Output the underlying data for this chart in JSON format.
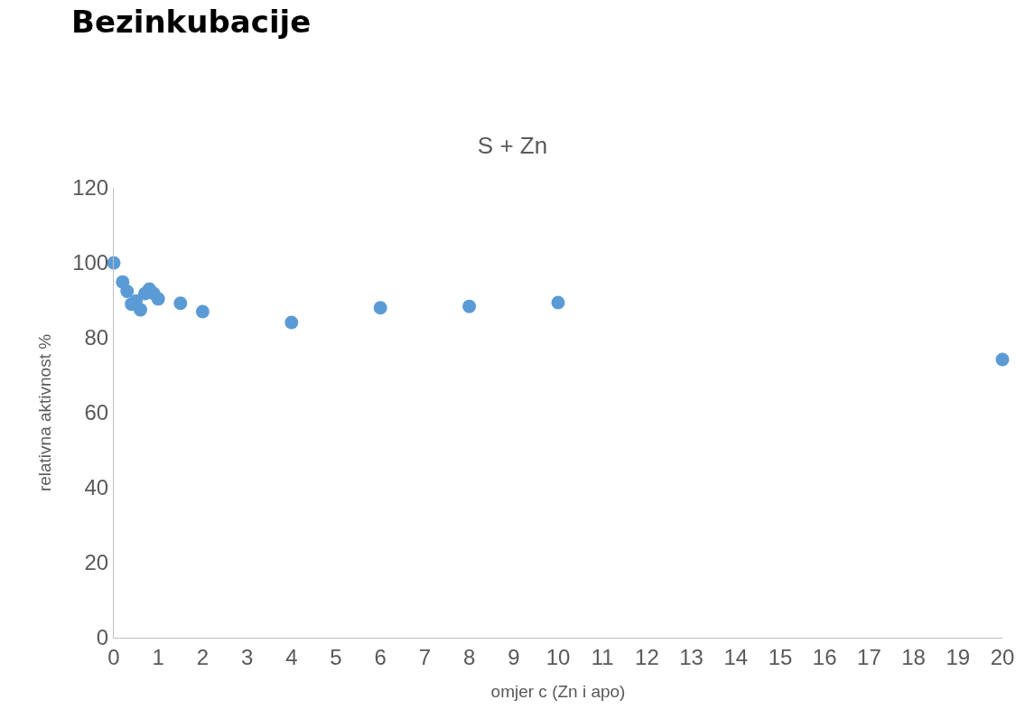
{
  "chart_data": {
    "type": "scatter",
    "title": "Bezinkubacije",
    "subtitle": "S + Zn",
    "xlabel": "omjer c (Zn i apo)",
    "ylabel": "relativna aktivnost %",
    "x": [
      0,
      0.2,
      0.3,
      0.4,
      0.5,
      0.6,
      0.7,
      0.8,
      0.9,
      1,
      1.5,
      2,
      4,
      6,
      8,
      10,
      20
    ],
    "values": [
      100,
      94.9,
      92.4,
      89.0,
      89.8,
      87.5,
      91.8,
      93.0,
      91.8,
      90.4,
      89.2,
      87.0,
      84.1,
      88.0,
      88.4,
      89.4,
      74.2
    ],
    "color": "#5b9bd5",
    "marker": "circle",
    "xlim": [
      0,
      20
    ],
    "xticks": [
      0,
      1,
      2,
      3,
      4,
      5,
      6,
      7,
      8,
      9,
      10,
      11,
      12,
      13,
      14,
      15,
      16,
      17,
      18,
      19,
      20
    ],
    "ylim": [
      0,
      120
    ],
    "yticks": [
      0,
      20,
      40,
      60,
      80,
      100,
      120
    ],
    "grid": false
  }
}
